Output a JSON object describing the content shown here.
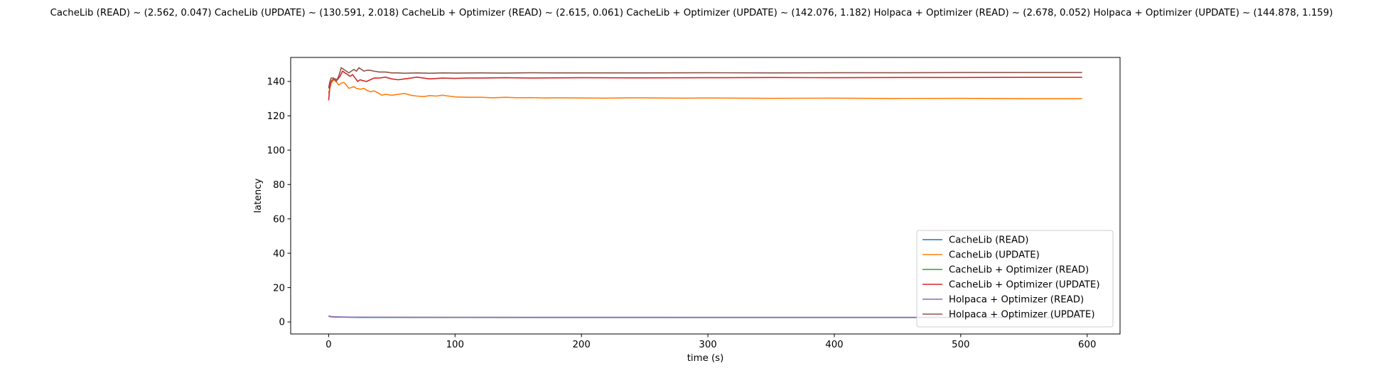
{
  "chart_data": {
    "type": "line",
    "title": "CacheLib (READ) ~ (2.562, 0.047)   CacheLib (UPDATE) ~ (130.591, 2.018)   CacheLib + Optimizer (READ) ~ (2.615, 0.061)   CacheLib + Optimizer (UPDATE) ~ (142.076, 1.182)   Holpaca + Optimizer (READ) ~ (2.678, 0.052)   Holpaca + Optimizer (UPDATE) ~ (144.878, 1.159)",
    "xlabel": "time (s)",
    "ylabel": "latency",
    "xlim": [
      -30,
      626
    ],
    "ylim": [
      -7,
      154
    ],
    "xticks": [
      0,
      100,
      200,
      300,
      400,
      500,
      600
    ],
    "yticks": [
      0,
      20,
      40,
      60,
      80,
      100,
      120,
      140
    ],
    "grid": false,
    "legend_position": "lower-right",
    "series": [
      {
        "name": "CacheLib (READ)",
        "color": "#1f77b4",
        "x": [
          0,
          2,
          5,
          10,
          20,
          40,
          60,
          100,
          200,
          300,
          400,
          500,
          596
        ],
        "y": [
          3.5,
          3.1,
          2.9,
          2.8,
          2.7,
          2.65,
          2.6,
          2.6,
          2.58,
          2.56,
          2.56,
          2.55,
          2.55
        ]
      },
      {
        "name": "CacheLib (UPDATE)",
        "color": "#ff7f0e",
        "x": [
          0,
          2,
          4,
          6,
          8,
          10,
          12,
          14,
          16,
          18,
          20,
          22,
          25,
          28,
          30,
          33,
          36,
          40,
          42,
          45,
          50,
          55,
          60,
          65,
          70,
          75,
          80,
          85,
          90,
          95,
          100,
          110,
          120,
          130,
          140,
          150,
          160,
          170,
          180,
          200,
          220,
          240,
          260,
          280,
          300,
          350,
          400,
          450,
          500,
          550,
          596
        ],
        "y": [
          133,
          139,
          141,
          140,
          138,
          139,
          139.5,
          138,
          136,
          136.5,
          137,
          136,
          135.5,
          136,
          135,
          134,
          134.5,
          133,
          132,
          132.5,
          132,
          132.5,
          133,
          132,
          131.5,
          131.2,
          131.8,
          131.5,
          132,
          131.5,
          131,
          130.8,
          130.8,
          130.5,
          130.8,
          130.5,
          130.6,
          130.4,
          130.5,
          130.4,
          130.3,
          130.5,
          130.4,
          130.3,
          130.4,
          130.2,
          130.3,
          130.1,
          130.2,
          130,
          130
        ]
      },
      {
        "name": "CacheLib + Optimizer (READ)",
        "color": "#2ca02c",
        "x": [
          0,
          2,
          5,
          10,
          20,
          40,
          60,
          100,
          200,
          300,
          400,
          500,
          596
        ],
        "y": [
          3.3,
          3.0,
          2.9,
          2.85,
          2.75,
          2.7,
          2.65,
          2.65,
          2.62,
          2.6,
          2.6,
          2.6,
          2.6
        ]
      },
      {
        "name": "CacheLib + Optimizer (UPDATE)",
        "color": "#d62728",
        "x": [
          0,
          1,
          2,
          3,
          5,
          7,
          9,
          11,
          13,
          15,
          17,
          19,
          21,
          23,
          25,
          27,
          30,
          33,
          36,
          40,
          45,
          50,
          55,
          60,
          65,
          70,
          75,
          80,
          90,
          100,
          110,
          120,
          140,
          160,
          180,
          200,
          250,
          300,
          350,
          400,
          450,
          500,
          550,
          596
        ],
        "y": [
          129,
          137,
          140,
          141,
          141.5,
          141,
          143,
          146,
          145,
          144,
          143,
          144,
          142,
          140,
          141,
          140.5,
          140,
          141,
          142,
          142,
          142.5,
          141.5,
          141,
          141.5,
          142,
          142.5,
          142,
          141.5,
          142,
          141.8,
          142,
          142,
          142.2,
          142,
          142.1,
          142.2,
          142.1,
          142.2,
          142.3,
          142.2,
          142.3,
          142.3,
          142.4,
          142.4
        ]
      },
      {
        "name": "Holpaca + Optimizer (READ)",
        "color": "#9467bd",
        "x": [
          0,
          2,
          5,
          10,
          20,
          40,
          60,
          100,
          200,
          300,
          400,
          500,
          596
        ],
        "y": [
          3.4,
          3.1,
          3.0,
          2.9,
          2.8,
          2.75,
          2.72,
          2.7,
          2.68,
          2.67,
          2.66,
          2.66,
          2.66
        ]
      },
      {
        "name": "Holpaca + Optimizer (UPDATE)",
        "color": "#8c564b",
        "x": [
          0,
          1,
          2,
          4,
          6,
          8,
          10,
          12,
          14,
          16,
          18,
          20,
          22,
          24,
          26,
          28,
          30,
          33,
          36,
          40,
          45,
          50,
          55,
          60,
          70,
          80,
          90,
          100,
          120,
          140,
          160,
          180,
          200,
          250,
          300,
          350,
          400,
          450,
          500,
          550,
          596
        ],
        "y": [
          136,
          140,
          142,
          142,
          140,
          143,
          148,
          147,
          146,
          145,
          146,
          147,
          146,
          148,
          147,
          146,
          146.5,
          146.5,
          146,
          145.5,
          145.5,
          145,
          145,
          144.8,
          145,
          144.8,
          145,
          144.9,
          145,
          144.9,
          145.1,
          145,
          145,
          145,
          145.1,
          145,
          145.1,
          145.1,
          145.2,
          145.2,
          145.2
        ]
      }
    ]
  }
}
